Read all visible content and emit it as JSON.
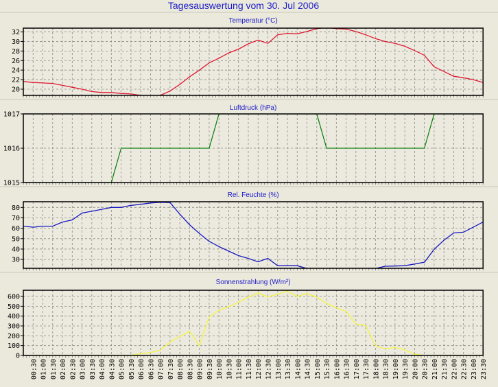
{
  "title": "Tagesauswertung vom 30. Jul 2006",
  "x_labels": [
    "00:30",
    "01:00",
    "01:30",
    "02:00",
    "02:30",
    "03:00",
    "03:30",
    "04:00",
    "04:30",
    "05:00",
    "05:30",
    "06:00",
    "06:30",
    "07:00",
    "07:30",
    "08:00",
    "08:30",
    "09:00",
    "09:30",
    "10:00",
    "10:30",
    "11:00",
    "11:30",
    "12:00",
    "12:30",
    "13:00",
    "13:30",
    "14:00",
    "14:30",
    "15:00",
    "15:30",
    "16:00",
    "16:30",
    "17:00",
    "17:30",
    "18:00",
    "18:30",
    "19:00",
    "19:30",
    "20:00",
    "20:30",
    "21:00",
    "21:30",
    "22:00",
    "22:30",
    "23:00",
    "23:30"
  ],
  "chart_data": [
    {
      "type": "line",
      "title": "Temperatur (°C)",
      "color": "#e01830",
      "x_start": "00:00",
      "x_step_minutes": 30,
      "ylim": [
        18.7,
        32.8
      ],
      "yticks": [
        20,
        22,
        24,
        26,
        28,
        30,
        32
      ],
      "values": [
        21.6,
        21.4,
        21.3,
        21.2,
        20.8,
        20.4,
        20.0,
        19.5,
        19.3,
        19.3,
        19.1,
        19.0,
        18.7,
        18.5,
        18.7,
        19.6,
        21.0,
        22.6,
        24.0,
        25.5,
        26.5,
        27.6,
        28.4,
        29.5,
        30.3,
        29.6,
        31.4,
        31.7,
        31.6,
        32.1,
        32.7,
        32.9,
        32.7,
        32.6,
        32.1,
        31.4,
        30.6,
        30.0,
        29.6,
        29.0,
        28.1,
        27.1,
        24.7,
        23.7,
        22.7,
        22.4,
        22.0,
        21.4
      ]
    },
    {
      "type": "line",
      "title": "Luftdruck (hPa)",
      "color": "#108010",
      "x_start": "00:00",
      "x_step_minutes": 30,
      "ylim": [
        1015,
        1017
      ],
      "yticks": [
        1015,
        1016,
        1017
      ],
      "values": [
        1015,
        1015,
        1015,
        1015,
        1015,
        1015,
        1015,
        1015,
        1015,
        1015,
        1016,
        1016,
        1016,
        1016,
        1016,
        1016,
        1016,
        1016,
        1016,
        1016,
        1017,
        1017,
        1017,
        1017,
        1017,
        1017,
        1017,
        1017,
        1017,
        1017,
        1017,
        1016,
        1016,
        1016,
        1016,
        1016,
        1016,
        1016,
        1016,
        1016,
        1016,
        1016,
        1017,
        1017,
        1017,
        1017,
        1017,
        1017
      ]
    },
    {
      "type": "line",
      "title": "Rel. Feuchte (%)",
      "color": "#1818c0",
      "x_start": "00:00",
      "x_step_minutes": 30,
      "ylim": [
        21.5,
        85.5
      ],
      "yticks": [
        30,
        40,
        50,
        60,
        70,
        80
      ],
      "values": [
        62,
        61,
        62,
        62,
        66,
        68,
        74.6,
        76.3,
        78.2,
        80,
        80,
        82,
        83,
        84.3,
        85,
        84.7,
        73.5,
        63.3,
        55,
        47.4,
        42.4,
        38,
        33.7,
        31,
        27.8,
        31,
        24,
        24,
        24,
        21.3,
        20,
        20,
        20,
        20,
        20,
        20,
        21.3,
        23.5,
        23.7,
        24,
        25.6,
        27.3,
        39.8,
        48.5,
        55.5,
        56.2,
        61,
        66
      ]
    },
    {
      "type": "line",
      "title": "Sonnenstrahlung (W/m²)",
      "color": "#f4f440",
      "x_start": "00:00",
      "x_step_minutes": 30,
      "ylim": [
        0,
        663
      ],
      "yticks": [
        0,
        100,
        200,
        300,
        400,
        500,
        600
      ],
      "values": [
        0,
        0,
        0,
        0,
        0,
        0,
        0,
        0,
        0,
        0,
        0,
        0,
        18,
        30,
        53,
        135,
        193,
        244,
        100,
        391,
        460,
        495,
        542,
        593,
        635,
        596,
        624,
        654,
        600,
        631,
        593,
        530,
        484,
        449,
        321,
        305,
        100,
        65,
        81,
        58,
        12,
        0,
        0,
        0,
        0,
        0,
        0,
        0
      ]
    }
  ]
}
